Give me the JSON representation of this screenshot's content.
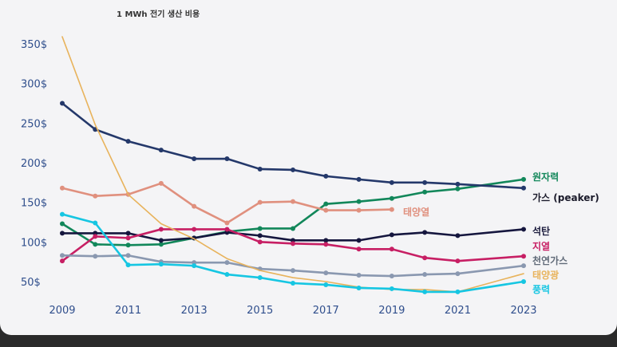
{
  "chart_data": {
    "type": "line",
    "title": "1 MWh 전기 생산 비용",
    "x": [
      2009,
      2010,
      2011,
      2012,
      2013,
      2014,
      2015,
      2016,
      2017,
      2018,
      2019,
      2020,
      2021,
      2022,
      2023
    ],
    "x_tick_labels": [
      "2009",
      "2011",
      "2013",
      "2015",
      "2017",
      "2019",
      "2021",
      "2023"
    ],
    "x_ticks": [
      2009,
      2011,
      2013,
      2015,
      2017,
      2019,
      2021,
      2023
    ],
    "y_tick_labels": [
      "50$",
      "100$",
      "150$",
      "200$",
      "250$",
      "300$",
      "350$"
    ],
    "y_ticks": [
      50,
      100,
      150,
      200,
      250,
      300,
      350
    ],
    "ylim": [
      40,
      360
    ],
    "xlim": [
      2009,
      2023
    ],
    "grid": false,
    "legend": "inline-right",
    "series": [
      {
        "name": "원자력",
        "color": "#12875a",
        "values": [
          123,
          97,
          96,
          97,
          105,
          113,
          117,
          117,
          148,
          151,
          155,
          163,
          167,
          null,
          179
        ]
      },
      {
        "name": "가스 (peaker)",
        "color": "#24386a",
        "values": [
          275,
          242,
          227,
          216,
          205,
          205,
          192,
          191,
          183,
          179,
          175,
          175,
          173,
          null,
          168
        ]
      },
      {
        "name": "태양열",
        "color": "#e0907e",
        "values": [
          168,
          158,
          160,
          174,
          145,
          124,
          150,
          151,
          140,
          140,
          141,
          null,
          null,
          null,
          null
        ]
      },
      {
        "name": "석탄",
        "color": "#15163e",
        "values": [
          111,
          111,
          111,
          102,
          105,
          112,
          108,
          102,
          102,
          102,
          109,
          112,
          108,
          null,
          116
        ]
      },
      {
        "name": "지열",
        "color": "#c71f64",
        "values": [
          76,
          107,
          105,
          116,
          116,
          116,
          100,
          98,
          97,
          91,
          91,
          80,
          76,
          null,
          82
        ]
      },
      {
        "name": "천연가스",
        "color": "#8a98b0",
        "values": [
          83,
          82,
          83,
          75,
          74,
          74,
          66,
          64,
          61,
          58,
          57,
          59,
          60,
          null,
          70
        ]
      },
      {
        "name": "태양광",
        "color": "#e8b35c",
        "values": [
          359,
          248,
          160,
          123,
          104,
          79,
          64,
          55,
          50,
          43,
          40,
          40,
          37,
          null,
          60
        ]
      },
      {
        "name": "풍력",
        "color": "#16c6e2",
        "values": [
          135,
          124,
          71,
          72,
          70,
          59,
          55,
          48,
          46,
          42,
          41,
          37,
          37,
          null,
          50
        ]
      }
    ]
  }
}
